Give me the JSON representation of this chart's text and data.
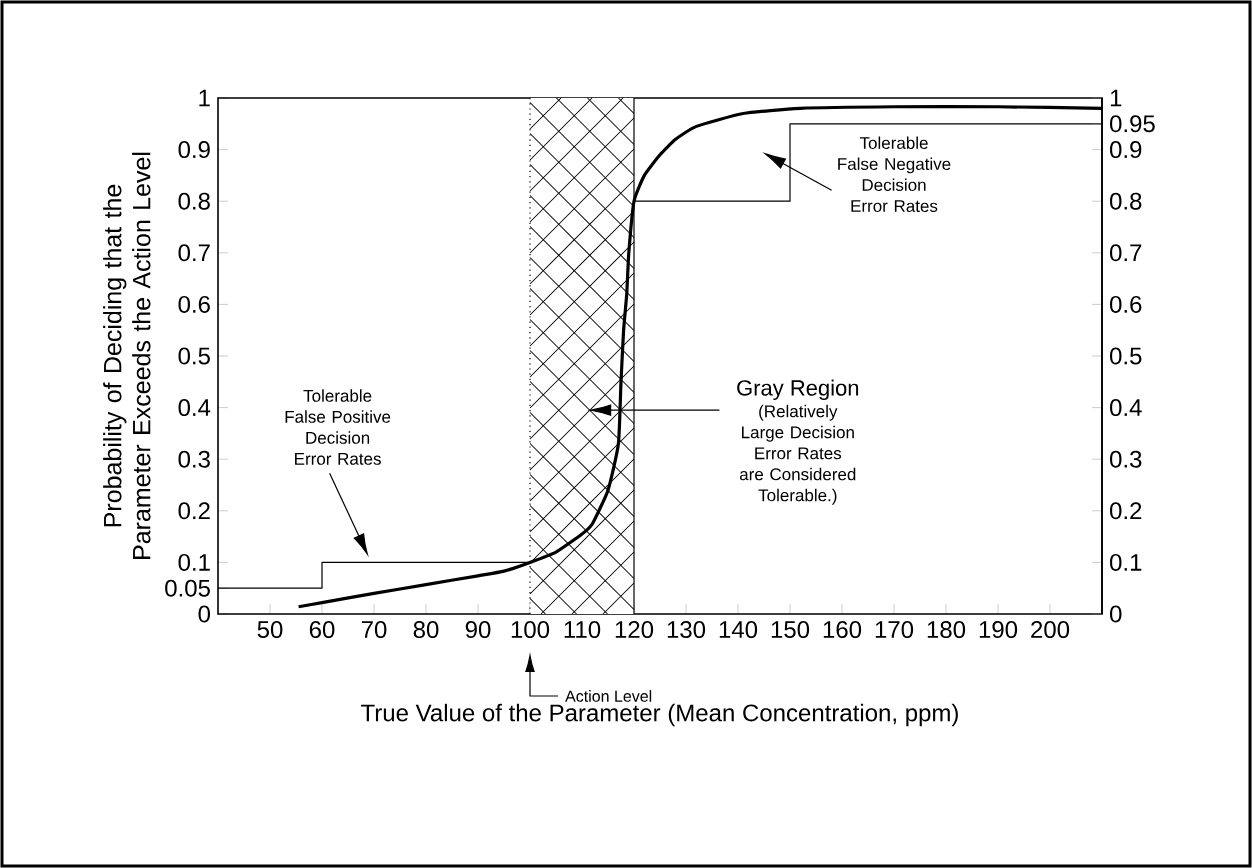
{
  "chart_data": {
    "type": "line",
    "xlabel": "True Value of  the Parameter (Mean Concentration, ppm)",
    "ylabel": "Probability of Deciding that the Parameter Exceeds the Action Level",
    "xlim": [
      40,
      210
    ],
    "xticks": [
      50,
      60,
      70,
      80,
      90,
      100,
      110,
      120,
      130,
      140,
      150,
      160,
      170,
      180,
      190,
      200
    ],
    "ylim": [
      0,
      1
    ],
    "yticks": [
      0,
      0.05,
      0.1,
      0.2,
      0.3,
      0.4,
      0.5,
      0.6,
      0.7,
      0.8,
      0.9,
      1
    ],
    "y2lim": [
      0,
      1
    ],
    "y2ticks": [
      0,
      0.1,
      0.2,
      0.3,
      0.4,
      0.5,
      0.6,
      0.7,
      0.8,
      0.9,
      0.95,
      1
    ],
    "series": [
      {
        "color": "#000000",
        "x": [
          55.5,
          60,
          70,
          80,
          90,
          95,
          100,
          105,
          110,
          112,
          115,
          117,
          117.5,
          118,
          118.6,
          119,
          120,
          122,
          125,
          128,
          132,
          141,
          152,
          170,
          190,
          210
        ],
        "values": [
          0.014,
          0.022,
          0.04,
          0.057,
          0.074,
          0.083,
          0.1,
          0.12,
          0.155,
          0.175,
          0.24,
          0.33,
          0.45,
          0.55,
          0.62,
          0.7,
          0.8,
          0.85,
          0.89,
          0.92,
          0.945,
          0.97,
          0.98,
          0.983,
          0.983,
          0.98
        ]
      },
      {
        "type": "step",
        "color": "#000000",
        "x": [
          40,
          60,
          100
        ],
        "values": [
          0.05,
          0.1,
          0.1
        ]
      },
      {
        "type": "step",
        "color": "#000000",
        "x": [
          120,
          150,
          210
        ],
        "values": [
          0.8,
          0.95,
          0.95
        ]
      }
    ],
    "bands": [
      {
        "axis": "x",
        "from": 100,
        "to": 120
      }
    ],
    "ref_lines": [
      {
        "axis": "x",
        "value": 100,
        "label": "Action Level",
        "line_style": "dotted"
      },
      {
        "axis": "x",
        "value": 120,
        "line_style": "solid"
      }
    ],
    "annotations": [
      "Tolerable False Positive Decision Error Rates",
      "Tolerable False Negative Decision Error Rates",
      "Gray Region",
      "(Relatively Large Decision Error Rates are Considered Tolerable.)"
    ]
  }
}
